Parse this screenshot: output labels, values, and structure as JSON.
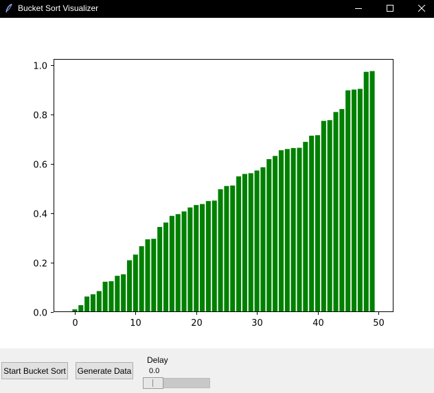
{
  "window": {
    "title": "Bucket Sort Visualizer",
    "icon": "feather-icon",
    "controls": [
      "minimize-icon",
      "maximize-icon",
      "close-icon"
    ]
  },
  "controls": {
    "start_label": "Start Bucket Sort",
    "generate_label": "Generate Data",
    "delay_label": "Delay",
    "delay_value": "0.0",
    "delay_slider_level": 0.0
  },
  "chart_data": {
    "type": "bar",
    "title": "",
    "xlabel": "",
    "ylabel": "",
    "x": [
      0,
      1,
      2,
      3,
      4,
      5,
      6,
      7,
      8,
      9,
      10,
      11,
      12,
      13,
      14,
      15,
      16,
      17,
      18,
      19,
      20,
      21,
      22,
      23,
      24,
      25,
      26,
      27,
      28,
      29,
      30,
      31,
      32,
      33,
      34,
      35,
      36,
      37,
      38,
      39,
      40,
      41,
      42,
      43,
      44,
      45,
      46,
      47,
      48,
      49
    ],
    "values": [
      0.011,
      0.028,
      0.063,
      0.072,
      0.085,
      0.123,
      0.125,
      0.147,
      0.153,
      0.21,
      0.233,
      0.267,
      0.295,
      0.297,
      0.345,
      0.363,
      0.39,
      0.397,
      0.408,
      0.424,
      0.434,
      0.438,
      0.45,
      0.452,
      0.498,
      0.511,
      0.513,
      0.55,
      0.56,
      0.563,
      0.574,
      0.587,
      0.62,
      0.633,
      0.656,
      0.661,
      0.665,
      0.666,
      0.69,
      0.715,
      0.717,
      0.775,
      0.778,
      0.811,
      0.823,
      0.899,
      0.902,
      0.905,
      0.974,
      0.977
    ],
    "color": "#008000",
    "xlim": [
      -3.5,
      52.5
    ],
    "ylim": [
      0,
      1.026
    ],
    "xticks": [
      0,
      10,
      20,
      30,
      40,
      50
    ],
    "xtick_labels": [
      "0",
      "10",
      "20",
      "30",
      "40",
      "50"
    ],
    "yticks": [
      0,
      0.2,
      0.4,
      0.6,
      0.8,
      1.0
    ],
    "ytick_labels": [
      "0.0",
      "0.2",
      "0.4",
      "0.6",
      "0.8",
      "1.0"
    ],
    "grid": false,
    "legend": "none"
  },
  "colors": {
    "titlebar": "#000000",
    "panel": "#f0f0f0",
    "bar": "#008000",
    "button": "#e1e1e1"
  }
}
